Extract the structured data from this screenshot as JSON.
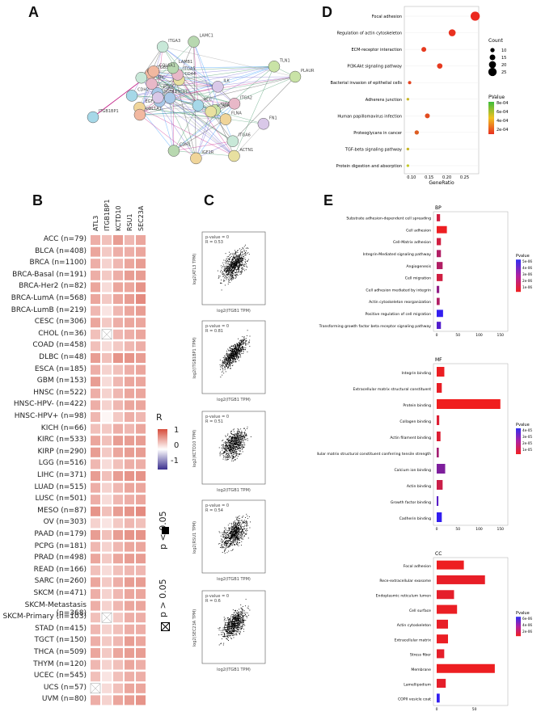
{
  "panels": {
    "A": "A",
    "B": "B",
    "C": "C",
    "D": "D",
    "E": "E"
  },
  "network": {
    "nodes": [
      "CDH2",
      "IGF1R",
      "EGFR",
      "FN1",
      "ITGB1",
      "CDH1",
      "CD44",
      "PTK2",
      "ITGA5",
      "CAV1",
      "VCL",
      "TLN1",
      "FLNA",
      "ILK",
      "COL1A1",
      "LAMB1",
      "ACTN1",
      "PXN",
      "SRC",
      "ITGA6",
      "ITGB1BP1",
      "PLAUR",
      "IGF1R",
      "TGFB1",
      "COL6A1",
      "LAMC1",
      "VCAM1",
      "ITGA1",
      "ITGA2",
      "ITGA3"
    ]
  },
  "heatmap": {
    "columns": [
      "ATL3",
      "ITGB1BP1",
      "KCTD10",
      "RSU1",
      "SEC23A"
    ],
    "rows": [
      {
        "label": "ACC (n=79)",
        "v": [
          0.45,
          0.35,
          0.55,
          0.4,
          0.5
        ]
      },
      {
        "label": "BLCA (n=408)",
        "v": [
          0.5,
          0.3,
          0.45,
          0.45,
          0.5
        ]
      },
      {
        "label": "BRCA (n=1100)",
        "v": [
          0.45,
          0.25,
          0.4,
          0.5,
          0.55
        ]
      },
      {
        "label": "BRCA-Basal (n=191)",
        "v": [
          0.45,
          0.3,
          0.45,
          0.55,
          0.55
        ]
      },
      {
        "label": "BRCA-Her2 (n=82)",
        "v": [
          0.5,
          0.2,
          0.5,
          0.5,
          0.6
        ]
      },
      {
        "label": "BRCA-LumA (n=568)",
        "v": [
          0.5,
          0.3,
          0.5,
          0.55,
          0.65
        ]
      },
      {
        "label": "BRCA-LumB (n=219)",
        "v": [
          0.4,
          0.15,
          0.4,
          0.5,
          0.55
        ]
      },
      {
        "label": "CESC (n=306)",
        "v": [
          0.5,
          0.3,
          0.45,
          0.5,
          0.5
        ]
      },
      {
        "label": "CHOL (n=36)",
        "v": [
          0.35,
          null,
          0.4,
          0.45,
          0.5
        ]
      },
      {
        "label": "COAD (n=458)",
        "v": [
          0.35,
          0.2,
          0.3,
          0.4,
          0.45
        ]
      },
      {
        "label": "DLBC (n=48)",
        "v": [
          0.55,
          0.35,
          0.6,
          0.6,
          0.55
        ]
      },
      {
        "label": "ESCA (n=185)",
        "v": [
          0.45,
          0.25,
          0.35,
          0.45,
          0.5
        ]
      },
      {
        "label": "GBM (n=153)",
        "v": [
          0.55,
          0.2,
          0.4,
          0.5,
          0.5
        ]
      },
      {
        "label": "HNSC (n=522)",
        "v": [
          0.45,
          0.25,
          0.4,
          0.5,
          0.5
        ]
      },
      {
        "label": "HNSC-HPV- (n=422)",
        "v": [
          0.45,
          0.25,
          0.4,
          0.5,
          0.5
        ]
      },
      {
        "label": "HNSC-HPV+ (n=98)",
        "v": [
          0.4,
          0.05,
          0.3,
          0.45,
          0.4
        ]
      },
      {
        "label": "KICH (n=66)",
        "v": [
          0.35,
          0.3,
          0.45,
          0.4,
          0.5
        ]
      },
      {
        "label": "KIRC (n=533)",
        "v": [
          0.5,
          0.35,
          0.55,
          0.55,
          0.55
        ]
      },
      {
        "label": "KIRP (n=290)",
        "v": [
          0.55,
          0.3,
          0.5,
          0.55,
          0.55
        ]
      },
      {
        "label": "LGG (n=516)",
        "v": [
          0.4,
          0.2,
          0.35,
          0.45,
          0.45
        ]
      },
      {
        "label": "LIHC (n=371)",
        "v": [
          0.55,
          0.35,
          0.55,
          0.6,
          0.6
        ]
      },
      {
        "label": "LUAD (n=515)",
        "v": [
          0.45,
          0.25,
          0.4,
          0.5,
          0.5
        ]
      },
      {
        "label": "LUSC (n=501)",
        "v": [
          0.45,
          0.2,
          0.4,
          0.45,
          0.5
        ]
      },
      {
        "label": "MESO (n=87)",
        "v": [
          0.6,
          0.35,
          0.55,
          0.6,
          0.65
        ]
      },
      {
        "label": "OV (n=303)",
        "v": [
          0.25,
          0.15,
          0.3,
          0.4,
          0.35
        ]
      },
      {
        "label": "PAAD (n=179)",
        "v": [
          0.55,
          0.35,
          0.55,
          0.6,
          0.6
        ]
      },
      {
        "label": "PCPG (n=181)",
        "v": [
          0.4,
          0.25,
          0.4,
          0.5,
          0.5
        ]
      },
      {
        "label": "PRAD (n=498)",
        "v": [
          0.5,
          0.3,
          0.5,
          0.55,
          0.55
        ]
      },
      {
        "label": "READ (n=166)",
        "v": [
          0.35,
          0.2,
          0.35,
          0.4,
          0.4
        ]
      },
      {
        "label": "SARC (n=260)",
        "v": [
          0.5,
          0.3,
          0.45,
          0.55,
          0.55
        ]
      },
      {
        "label": "SKCM (n=471)",
        "v": [
          0.45,
          0.25,
          0.4,
          0.5,
          0.5
        ]
      },
      {
        "label": "SKCM-Metastasis (n=368)",
        "v": [
          0.45,
          0.25,
          0.4,
          0.5,
          0.5
        ]
      },
      {
        "label": "SKCM-Primary (n=103)",
        "v": [
          0.35,
          null,
          0.3,
          0.45,
          0.45
        ]
      },
      {
        "label": "STAD (n=415)",
        "v": [
          0.4,
          0.25,
          0.35,
          0.45,
          0.45
        ]
      },
      {
        "label": "TGCT (n=150)",
        "v": [
          0.45,
          0.3,
          0.4,
          0.55,
          0.5
        ]
      },
      {
        "label": "THCA (n=509)",
        "v": [
          0.5,
          0.3,
          0.5,
          0.55,
          0.55
        ]
      },
      {
        "label": "THYM (n=120)",
        "v": [
          0.4,
          0.25,
          0.35,
          0.5,
          0.45
        ]
      },
      {
        "label": "UCEC (n=545)",
        "v": [
          0.35,
          0.15,
          0.35,
          0.45,
          0.45
        ]
      },
      {
        "label": "UCS (n=57)",
        "v": [
          null,
          0.2,
          0.35,
          0.5,
          0.5
        ]
      },
      {
        "label": "UVM (n=80)",
        "v": [
          0.45,
          0.25,
          0.5,
          0.55,
          0.6
        ]
      }
    ],
    "legend_title": "R",
    "legend_ticks": [
      "1",
      "0",
      "-1"
    ],
    "sig_labels": [
      "p < 0.05",
      "p > 0.05"
    ]
  },
  "scatters": [
    {
      "p": "p-value = 0",
      "r": "R = 0.53",
      "ylabel": "log2(ATL3 TPM)",
      "xlabel": "log2(ITGB1 TPM)"
    },
    {
      "p": "p-value = 0",
      "r": "R = 0.81",
      "ylabel": "log2(ITGB1BP1 TPM)",
      "xlabel": "log2(ITGB1 TPM)"
    },
    {
      "p": "p-value = 0",
      "r": "R = 0.51",
      "ylabel": "log2(KCTD10 TPM)",
      "xlabel": "log2(ITGB1 TPM)"
    },
    {
      "p": "p-value = 0",
      "r": "R = 0.54",
      "ylabel": "log2(RSU1 TPM)",
      "xlabel": "log2(ITGB1 TPM)"
    },
    {
      "p": "p-value = 0",
      "r": "R = 0.6",
      "ylabel": "log2(SEC23A TPM)",
      "xlabel": "log2(ITGB1 TPM)"
    }
  ],
  "chart_data": [
    {
      "type": "scatter",
      "panel": "D",
      "xlabel": "GeneRatio",
      "categories": [
        "Focal adhesion",
        "Regulation of actin cytoskeleton",
        "ECM-receptor interaction",
        "PI3K-Akt signaling pathway",
        "Bacterial invasion of epithelial cells",
        "Adherens junction",
        "Human papillomavirus infection",
        "Proteoglycans in cancer",
        "TGF-beta signaling pathway",
        "Protein digestion and absorption"
      ],
      "x": [
        0.28,
        0.215,
        0.135,
        0.18,
        0.095,
        0.09,
        0.145,
        0.115,
        0.09,
        0.09
      ],
      "count": [
        28,
        20,
        12,
        14,
        6,
        4,
        12,
        10,
        4,
        4
      ],
      "pvalue": [
        1e-07,
        5e-05,
        0.0001,
        0.0001,
        0.00015,
        0.0008,
        0.0002,
        0.0003,
        0.0008,
        0.0009
      ],
      "xticks": [
        "0.10",
        "0.15",
        "0.20",
        "0.25"
      ],
      "xlim": [
        0.08,
        0.29
      ],
      "legend": {
        "count_title": "Count",
        "count_ticks": [
          "10",
          "15",
          "20",
          "25"
        ],
        "p_title": "PValue",
        "p_ticks": [
          "8e-04",
          "6e-04",
          "4e-04",
          "2e-04"
        ]
      }
    },
    {
      "type": "bar",
      "panel": "BP",
      "title": "BP",
      "categories": [
        "Substrate adhesion-dependent cell spreading",
        "Cell adhesion",
        "Cell-Matrix adhesion",
        "Integrin-Mediated signaling pathway",
        "Angiogenesis",
        "Cell migration",
        "Cell adhesion mediated by integrin",
        "Actin cytoskeleton reorganization",
        "Positive regulation of cell migration",
        "Transforming growth factor beta receptor signaling pathway"
      ],
      "values": [
        8,
        24,
        10,
        10,
        14,
        14,
        6,
        7,
        15,
        10
      ],
      "pvalue": [
        1e-06,
        1e-07,
        1e-06,
        2e-06,
        2e-06,
        1e-06,
        3e-06,
        2e-06,
        6e-06,
        5e-06
      ],
      "xticks": [
        "0",
        "50",
        "100",
        "150"
      ],
      "xlim": [
        0,
        160
      ],
      "legend": {
        "title": "Pvalue",
        "ticks": [
          "5e-06",
          "4e-06",
          "3e-06",
          "2e-06",
          "1e-06"
        ]
      }
    },
    {
      "type": "bar",
      "panel": "MF",
      "title": "MF",
      "categories": [
        "Integrin binding",
        "Extracellular matrix structural constituent",
        "Protein binding",
        "Collagen binding",
        "Actin filament binding",
        "Extracellular matrix structural constituent conferring tensile strength",
        "Calcium ion binding",
        "Actin binding",
        "Growth factor binding",
        "Cadherin binding"
      ],
      "values": [
        18,
        12,
        150,
        6,
        9,
        5,
        20,
        14,
        4,
        12
      ],
      "pvalue": [
        1e-06,
        2e-06,
        1e-07,
        5e-06,
        5e-06,
        2e-05,
        3e-05,
        1e-05,
        4e-05,
        5e-05
      ],
      "xticks": [
        "0",
        "50",
        "100",
        "150"
      ],
      "xlim": [
        0,
        160
      ],
      "legend": {
        "title": "Pvalue",
        "ticks": [
          "4e-05",
          "3e-05",
          "2e-05",
          "1e-05"
        ]
      }
    },
    {
      "type": "bar",
      "panel": "CC",
      "title": "CC",
      "categories": [
        "Focal adhesion",
        "Rece-extracellular exosome",
        "Endoplasmic reticulum lumen",
        "Cell surface",
        "Actin cytoskeleton",
        "Extracellular matrix",
        "Stress fiber",
        "Membrane",
        "Lamellipodium",
        "COPII vesicle coat"
      ],
      "values": [
        36,
        64,
        23,
        27,
        15,
        15,
        10,
        77,
        12,
        4
      ],
      "pvalue": [
        1e-06,
        3e-06,
        4e-06,
        2e-06,
        3e-06,
        2e-06,
        4e-06,
        1e-06,
        4e-06,
        7e-05
      ],
      "xticks": [
        "0",
        "50"
      ],
      "xlim": [
        0,
        90
      ],
      "legend": {
        "title": "Pvalue",
        "ticks": [
          "6e-06",
          "4e-06",
          "2e-06"
        ]
      }
    }
  ]
}
